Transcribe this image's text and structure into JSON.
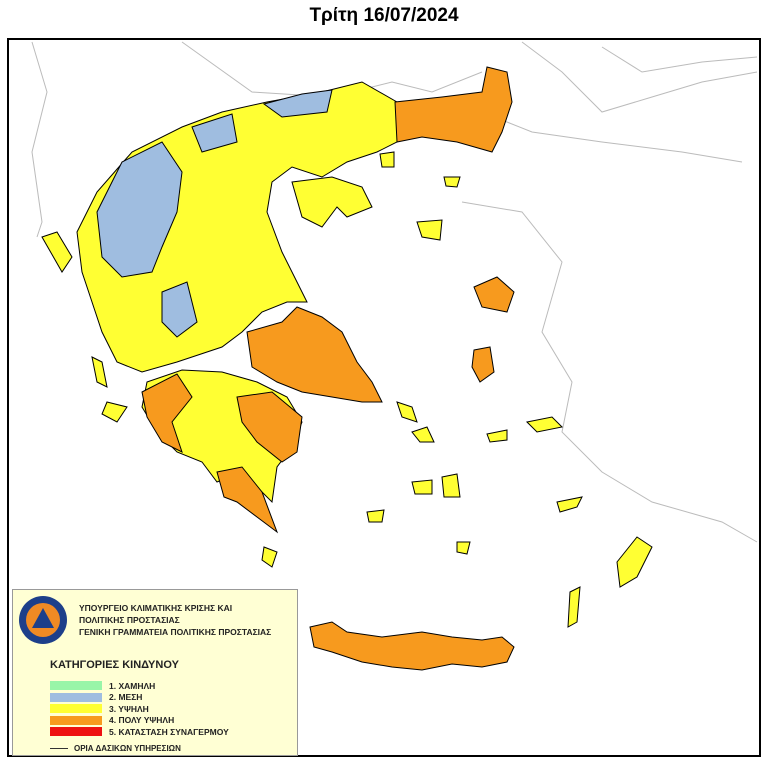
{
  "title": "Τρίτη 16/07/2024",
  "legend": {
    "org_lines": [
      "ΥΠΟΥΡΓΕΙΟ  ΚΛΙΜΑΤΙΚΗΣ ΚΡΙΣΗΣ ΚΑΙ",
      "ΠΟΛΙΤΙΚΗΣ ΠΡΟΣΤΑΣΙΑΣ",
      "ΓΕΝΙΚΗ ΓΡΑΜΜΑΤΕΙΑ ΠΟΛΙΤΙΚΗΣ ΠΡΟΣΤΑΣΙΑΣ"
    ],
    "logo_text": "ΠΟΛΙΤΙΚΗ ΠΡΟΣΤΑΣΙΑ ΕΛΛΑΔΑ",
    "categories_title": "ΚΑΤΗΓΟΡΙΕΣ ΚΙΝΔΥΝΟΥ",
    "categories": [
      {
        "label": "1. ΧΑΜΗΛΗ",
        "color": "#99f5a8"
      },
      {
        "label": "2. ΜΕΣΗ",
        "color": "#9fbde0"
      },
      {
        "label": "3. ΥΨΗΛΗ",
        "color": "#ffff33"
      },
      {
        "label": "4. ΠΟΛΥ ΥΨΗΛΗ",
        "color": "#f79a1e"
      },
      {
        "label": "5. ΚΑΤΑΣΤΑΣΗ ΣΥΝΑΓΕΡΜΟΥ",
        "color": "#ee1111"
      }
    ],
    "boundary_label": "ΟΡΙΑ ΔΑΣΙΚΩΝ ΥΠΗΡΕΣΙΩΝ"
  }
}
